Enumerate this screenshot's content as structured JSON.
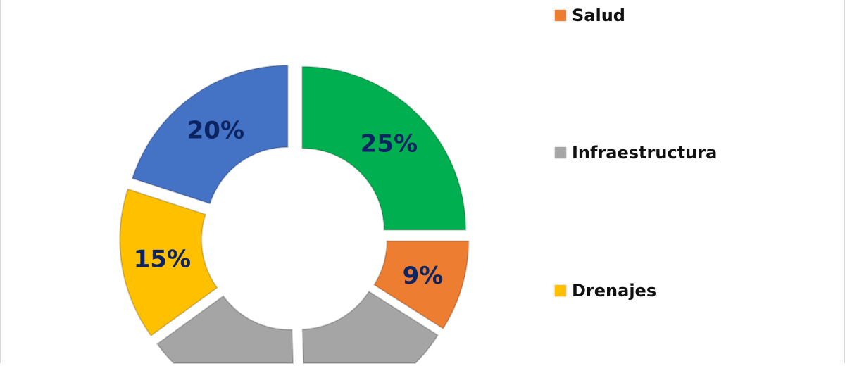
{
  "chart_data": {
    "type": "pie",
    "style": "exploded donut",
    "slices": [
      {
        "label": "25%",
        "value": 25,
        "color": "#00b050"
      },
      {
        "label": "9%",
        "value": 9,
        "color": "#ed7d31"
      },
      {
        "label": "",
        "value": null,
        "color": "#a5a5a5"
      },
      {
        "label": "",
        "value": null,
        "color": "#a5a5a5"
      },
      {
        "label": "15%",
        "value": 15,
        "color": "#ffc000"
      },
      {
        "label": "20%",
        "value": 20,
        "color": "#4472c4"
      }
    ],
    "data_label_color": "#0d2463",
    "legend": {
      "placement": "right",
      "entries": [
        {
          "name": "Salud",
          "color": "#ed7d31"
        },
        {
          "name": "Infraestructura",
          "color": "#a5a5a5"
        },
        {
          "name": "Drenajes",
          "color": "#ffc000"
        }
      ]
    }
  }
}
